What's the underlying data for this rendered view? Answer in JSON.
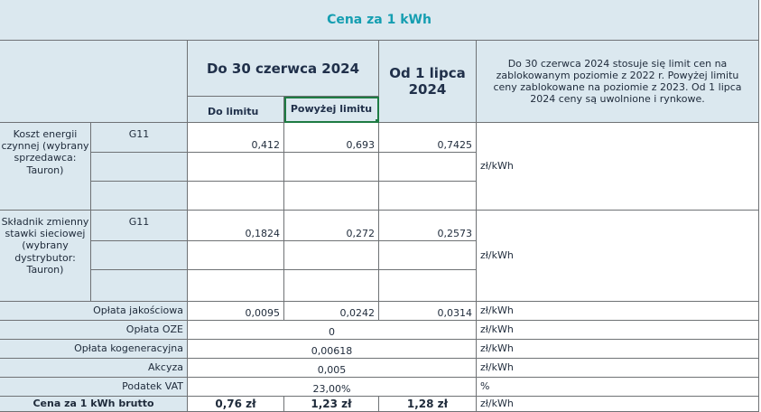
{
  "title": "Cena za 1 kWh",
  "header": {
    "until_date": "Do 30 czerwca 2024",
    "within_limit": "Do limitu",
    "above_limit": "Powyżej limitu",
    "from_date": "Od 1 lipca 2024",
    "note": "Do 30 czerwca 2024 stosuje się limit cen na zablokowanym poziomie z 2022 r. Powyżej limitu ceny zablokowane na poziomie z 2023. Od 1 lipca 2024 ceny są uwolnione i rynkowe."
  },
  "energy_cost": {
    "label": "Koszt energii czynnej (wybrany sprzedawca: Tauron)",
    "tariff": "G11",
    "within_limit": "0,412",
    "above_limit": "0,693",
    "from_july": "0,7425",
    "unit": "zł/kWh"
  },
  "network": {
    "label": "Składnik zmienny stawki sieciowej (wybrany dystrybutor: Tauron)",
    "tariff": "G11",
    "within_limit": "0,1824",
    "above_limit": "0,272",
    "from_july": "0,2573",
    "unit": "zł/kWh"
  },
  "quality_fee": {
    "label": "Opłata jakościowa",
    "within_limit": "0,0095",
    "above_limit": "0,0242",
    "from_july": "0,0314",
    "unit": "zł/kWh"
  },
  "oze_fee": {
    "label": "Opłata OZE",
    "value": "0",
    "unit": "zł/kWh"
  },
  "cogeneration_fee": {
    "label": "Opłata kogeneracyjna",
    "value": "0,00618",
    "unit": "zł/kWh"
  },
  "excise": {
    "label": "Akcyza",
    "value": "0,005",
    "unit": "zł/kWh"
  },
  "vat": {
    "label": "Podatek VAT",
    "value": "23,00%",
    "unit": "%"
  },
  "total": {
    "label": "Cena za 1 kWh brutto",
    "within_limit": "0,76 zł",
    "above_limit": "1,23 zł",
    "from_july": "1,28 zł",
    "unit": "zł/kWh"
  }
}
